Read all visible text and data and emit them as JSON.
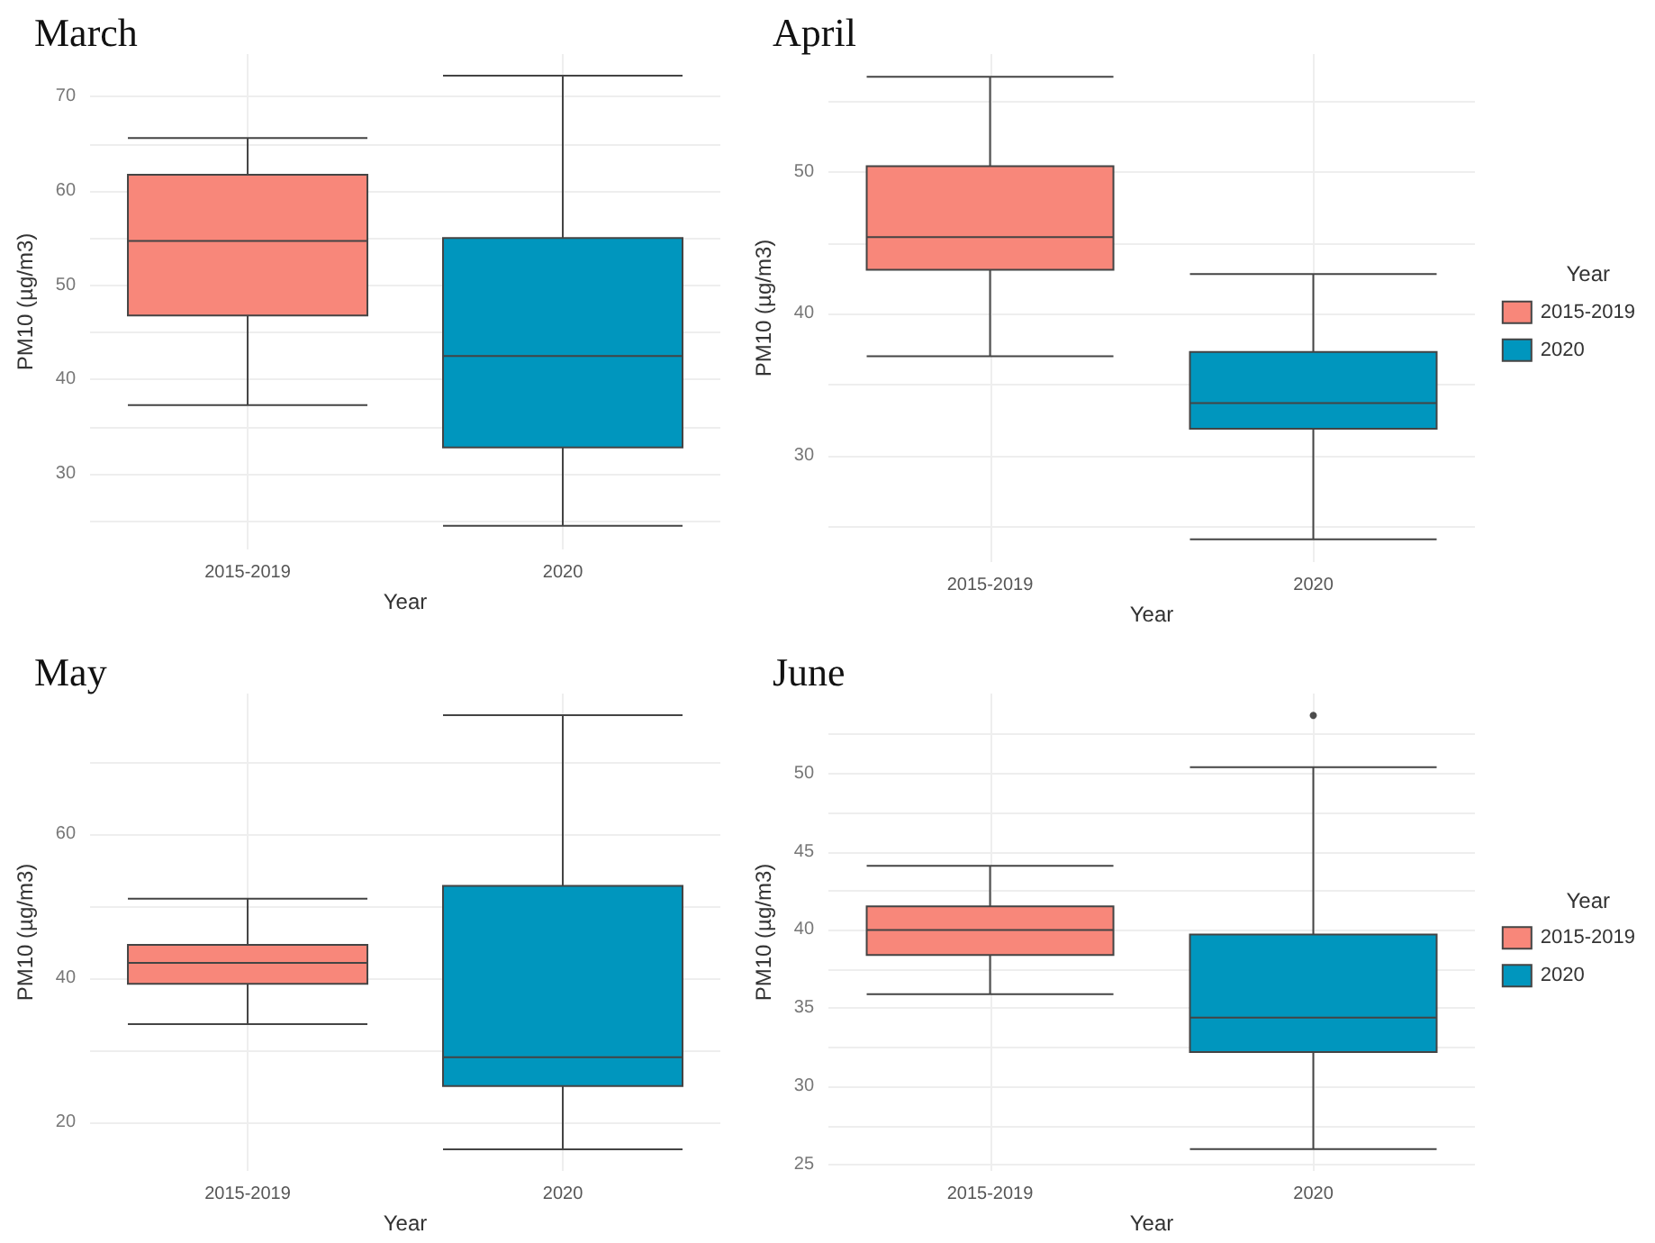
{
  "chart_data": [
    {
      "type": "box",
      "title": "March",
      "xlabel": "Year",
      "ylabel": "PM10 (µg/m3)",
      "categories": [
        "2015-2019",
        "2020"
      ],
      "ylim": [
        22,
        74.5
      ],
      "yticks": [
        {
          "value": 25,
          "label": null
        },
        30,
        {
          "value": 35,
          "label": null
        },
        40,
        {
          "value": 45,
          "label": null
        },
        50,
        {
          "value": 55,
          "label": null
        },
        60,
        {
          "value": 65,
          "label": null
        },
        70
      ],
      "grid": true,
      "legend": false,
      "series": [
        {
          "color": "#f8877a",
          "boxes": [
            {
              "low": 37.3,
              "q1": 46.8,
              "median": 54.7,
              "q3": 61.7,
              "high": 65.6
            },
            null
          ]
        },
        {
          "color": "#0096be",
          "boxes": [
            null,
            {
              "low": 24.5,
              "q1": 32.8,
              "median": 42.5,
              "q3": 55.0,
              "high": 72.2
            }
          ]
        }
      ]
    },
    {
      "type": "box",
      "title": "April",
      "xlabel": "Year",
      "ylabel": "PM10 (µg/m3)",
      "legend_title": "Year",
      "categories": [
        "2015-2019",
        "2020"
      ],
      "ylim": [
        22.5,
        58.3
      ],
      "yticks": [
        {
          "value": 25,
          "label": null
        },
        30,
        {
          "value": 35,
          "label": null
        },
        40,
        {
          "value": 45,
          "label": null
        },
        50,
        {
          "value": 55,
          "label": null
        }
      ],
      "grid": true,
      "legend": "right",
      "series": [
        {
          "name": "2015-2019",
          "color": "#f8877a",
          "boxes": [
            {
              "low": 37.0,
              "q1": 43.1,
              "median": 45.4,
              "q3": 50.4,
              "high": 56.7
            },
            null
          ]
        },
        {
          "name": "2020",
          "color": "#0096be",
          "boxes": [
            null,
            {
              "low": 24.1,
              "q1": 31.9,
              "median": 33.7,
              "q3": 37.3,
              "high": 42.8
            }
          ]
        }
      ]
    },
    {
      "type": "box",
      "title": "May",
      "xlabel": "Year",
      "ylabel": "PM10 (µg/m3)",
      "categories": [
        "2015-2019",
        "2020"
      ],
      "ylim": [
        13.2,
        79.5
      ],
      "yticks": [
        20,
        {
          "value": 30,
          "label": null
        },
        40,
        {
          "value": 50,
          "label": null
        },
        60,
        {
          "value": 70,
          "label": null
        }
      ],
      "grid": true,
      "legend": false,
      "series": [
        {
          "color": "#f8877a",
          "boxes": [
            {
              "low": 33.6,
              "q1": 39.2,
              "median": 42.1,
              "q3": 44.6,
              "high": 51.0
            },
            null
          ]
        },
        {
          "color": "#0096be",
          "boxes": [
            null,
            {
              "low": 16.2,
              "q1": 25.0,
              "median": 29.0,
              "q3": 52.8,
              "high": 76.5
            }
          ]
        }
      ]
    },
    {
      "type": "box",
      "title": "June",
      "xlabel": "Year",
      "ylabel": "PM10 (µg/m3)",
      "legend_title": "Year",
      "categories": [
        "2015-2019",
        "2020"
      ],
      "ylim": [
        24.6,
        55.1
      ],
      "yticks": [
        25,
        {
          "value": 27.5,
          "label": null
        },
        30,
        {
          "value": 32.5,
          "label": null
        },
        35,
        {
          "value": 37.5,
          "label": null
        },
        40,
        {
          "value": 42.5,
          "label": null
        },
        45,
        {
          "value": 47.5,
          "label": null
        },
        50,
        {
          "value": 52.5,
          "label": null
        }
      ],
      "grid": true,
      "legend": "right",
      "series": [
        {
          "name": "2015-2019",
          "color": "#f8877a",
          "boxes": [
            {
              "low": 35.9,
              "q1": 38.4,
              "median": 40.0,
              "q3": 41.5,
              "high": 44.1
            },
            null
          ]
        },
        {
          "name": "2020",
          "color": "#0096be",
          "boxes": [
            null,
            {
              "low": 26.0,
              "q1": 32.2,
              "median": 34.4,
              "q3": 39.7,
              "high": 50.4,
              "outliers": [
                53.7
              ]
            }
          ]
        }
      ]
    }
  ]
}
